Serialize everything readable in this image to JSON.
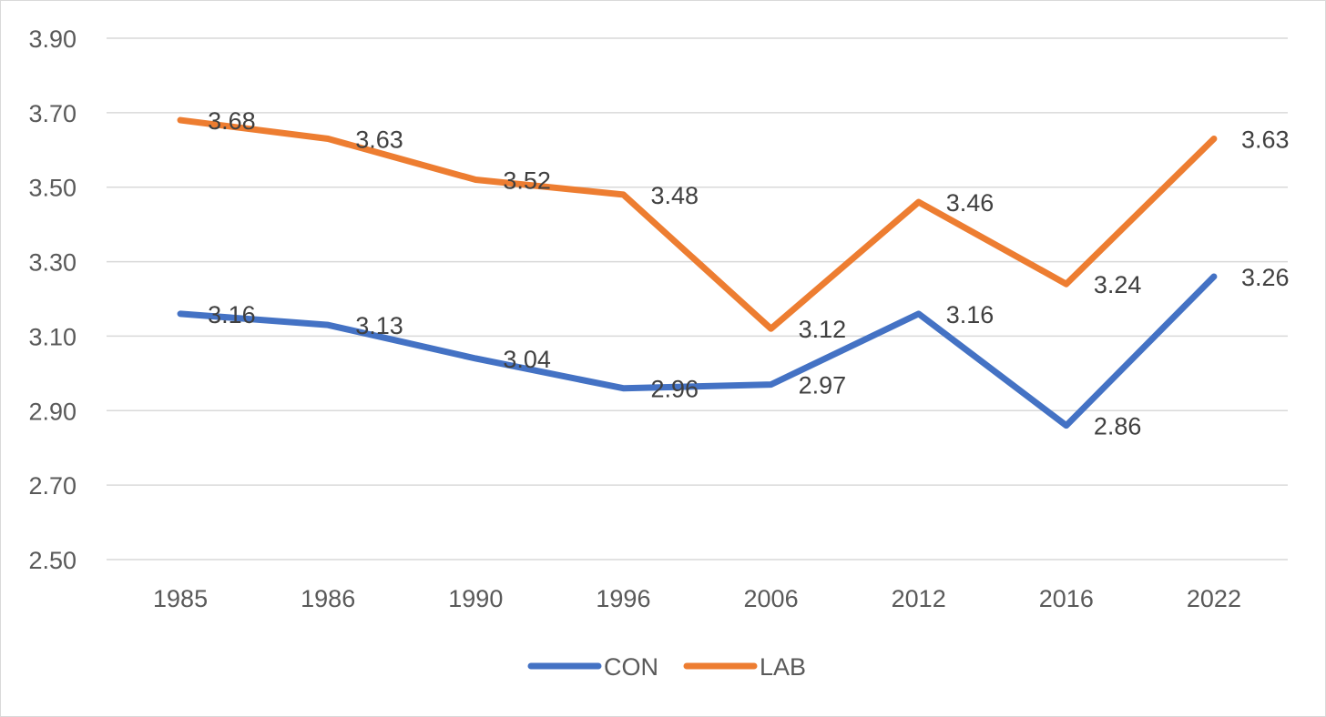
{
  "chart_data": {
    "type": "line",
    "title": "",
    "xlabel": "",
    "ylabel": "",
    "categories": [
      "1985",
      "1986",
      "1990",
      "1996",
      "2006",
      "2012",
      "2016",
      "2022"
    ],
    "ylim": [
      2.5,
      3.9
    ],
    "yticks": [
      "2.50",
      "2.70",
      "2.90",
      "3.10",
      "3.30",
      "3.50",
      "3.70",
      "3.90"
    ],
    "grid": true,
    "legend_position": "bottom",
    "series": [
      {
        "name": "CON",
        "color": "#4472c4",
        "values": [
          3.16,
          3.13,
          3.04,
          2.96,
          2.97,
          3.16,
          2.86,
          3.26
        ],
        "labels": [
          "3.16",
          "3.13",
          "3.04",
          "2.96",
          "2.97",
          "3.16",
          "2.86",
          "3.26"
        ]
      },
      {
        "name": "LAB",
        "color": "#ed7d31",
        "values": [
          3.68,
          3.63,
          3.52,
          3.48,
          3.12,
          3.46,
          3.24,
          3.63
        ],
        "labels": [
          "3.68",
          "3.63",
          "3.52",
          "3.48",
          "3.12",
          "3.46",
          "3.24",
          "3.63"
        ]
      }
    ]
  }
}
